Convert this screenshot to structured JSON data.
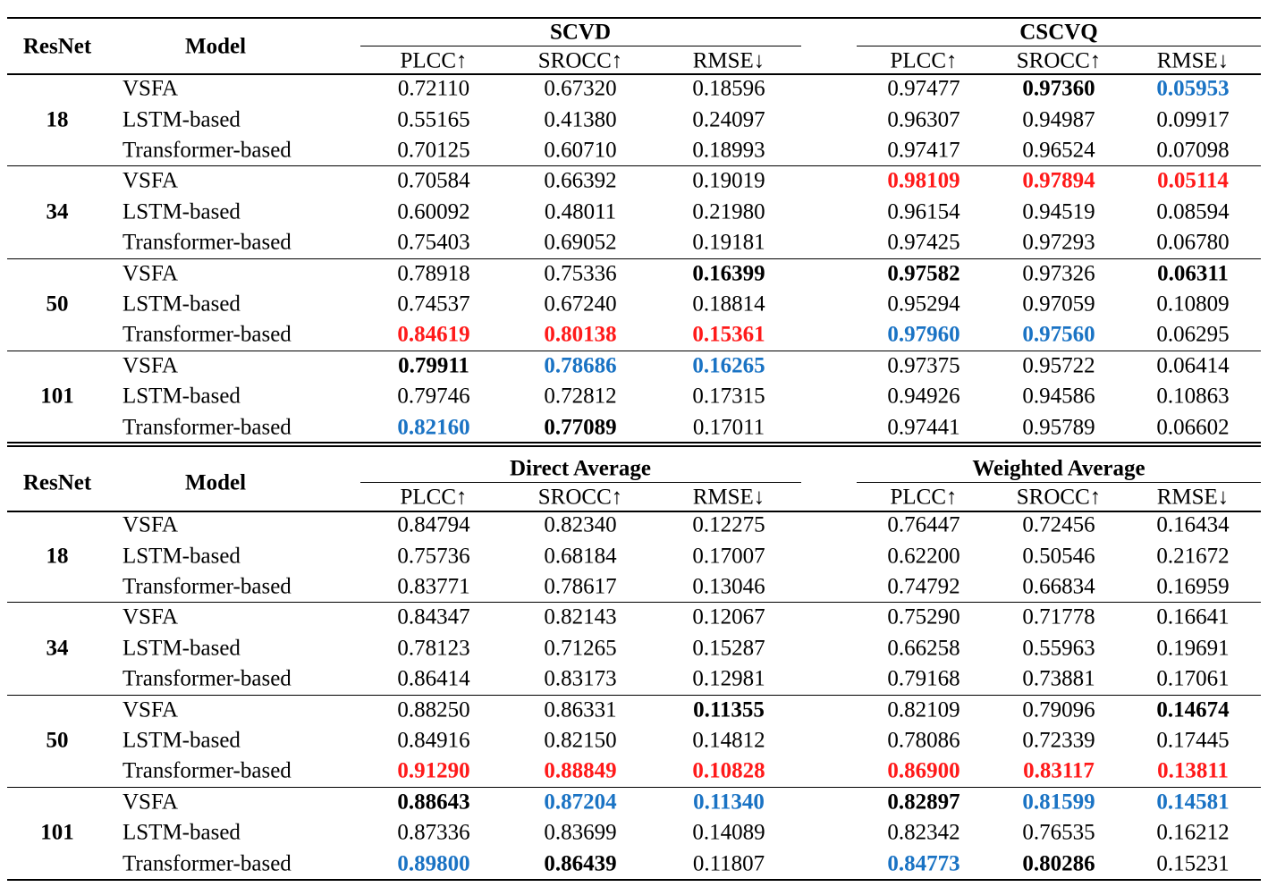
{
  "colors": {
    "red": "#ff1a1a",
    "blue": "#1a73c4",
    "text": "#000000"
  },
  "tables": [
    {
      "col_resnet": "ResNet",
      "col_model": "Model",
      "groups": [
        {
          "title": "SCVD",
          "metrics": [
            "PLCC↑",
            "SROCC↑",
            "RMSE↓"
          ]
        },
        {
          "title": "CSCVQ",
          "metrics": [
            "PLCC↑",
            "SROCC↑",
            "RMSE↓"
          ]
        }
      ],
      "blocks": [
        {
          "resnet": "18",
          "rows": [
            {
              "model": "VSFA",
              "values": [
                "0.72110",
                "0.67320",
                "0.18596",
                "0.97477",
                "0.97360",
                "0.05953"
              ],
              "styles": [
                "",
                "",
                "",
                "",
                "b",
                "blue"
              ]
            },
            {
              "model": "LSTM-based",
              "values": [
                "0.55165",
                "0.41380",
                "0.24097",
                "0.96307",
                "0.94987",
                "0.09917"
              ],
              "styles": [
                "",
                "",
                "",
                "",
                "",
                ""
              ]
            },
            {
              "model": "Transformer-based",
              "values": [
                "0.70125",
                "0.60710",
                "0.18993",
                "0.97417",
                "0.96524",
                "0.07098"
              ],
              "styles": [
                "",
                "",
                "",
                "",
                "",
                ""
              ]
            }
          ]
        },
        {
          "resnet": "34",
          "rows": [
            {
              "model": "VSFA",
              "values": [
                "0.70584",
                "0.66392",
                "0.19019",
                "0.98109",
                "0.97894",
                "0.05114"
              ],
              "styles": [
                "",
                "",
                "",
                "red",
                "red",
                "red"
              ]
            },
            {
              "model": "LSTM-based",
              "values": [
                "0.60092",
                "0.48011",
                "0.21980",
                "0.96154",
                "0.94519",
                "0.08594"
              ],
              "styles": [
                "",
                "",
                "",
                "",
                "",
                ""
              ]
            },
            {
              "model": "Transformer-based",
              "values": [
                "0.75403",
                "0.69052",
                "0.19181",
                "0.97425",
                "0.97293",
                "0.06780"
              ],
              "styles": [
                "",
                "",
                "",
                "",
                "",
                ""
              ]
            }
          ]
        },
        {
          "resnet": "50",
          "rows": [
            {
              "model": "VSFA",
              "values": [
                "0.78918",
                "0.75336",
                "0.16399",
                "0.97582",
                "0.97326",
                "0.06311"
              ],
              "styles": [
                "",
                "",
                "b",
                "b",
                "",
                "b"
              ]
            },
            {
              "model": "LSTM-based",
              "values": [
                "0.74537",
                "0.67240",
                "0.18814",
                "0.95294",
                "0.97059",
                "0.10809"
              ],
              "styles": [
                "",
                "",
                "",
                "",
                "",
                ""
              ]
            },
            {
              "model": "Transformer-based",
              "values": [
                "0.84619",
                "0.80138",
                "0.15361",
                "0.97960",
                "0.97560",
                "0.06295"
              ],
              "styles": [
                "red",
                "red",
                "red",
                "blue",
                "blue",
                ""
              ]
            }
          ]
        },
        {
          "resnet": "101",
          "rows": [
            {
              "model": "VSFA",
              "values": [
                "0.79911",
                "0.78686",
                "0.16265",
                "0.97375",
                "0.95722",
                "0.06414"
              ],
              "styles": [
                "b",
                "blue",
                "blue",
                "",
                "",
                ""
              ]
            },
            {
              "model": "LSTM-based",
              "values": [
                "0.79746",
                "0.72812",
                "0.17315",
                "0.94926",
                "0.94586",
                "0.10863"
              ],
              "styles": [
                "",
                "",
                "",
                "",
                "",
                ""
              ]
            },
            {
              "model": "Transformer-based",
              "values": [
                "0.82160",
                "0.77089",
                "0.17011",
                "0.97441",
                "0.95789",
                "0.06602"
              ],
              "styles": [
                "blue",
                "b",
                "",
                "",
                "",
                ""
              ]
            }
          ]
        }
      ]
    },
    {
      "col_resnet": "ResNet",
      "col_model": "Model",
      "groups": [
        {
          "title": "Direct Average",
          "metrics": [
            "PLCC↑",
            "SROCC↑",
            "RMSE↓"
          ]
        },
        {
          "title": "Weighted Average",
          "metrics": [
            "PLCC↑",
            "SROCC↑",
            "RMSE↓"
          ]
        }
      ],
      "blocks": [
        {
          "resnet": "18",
          "rows": [
            {
              "model": "VSFA",
              "values": [
                "0.84794",
                "0.82340",
                "0.12275",
                "0.76447",
                "0.72456",
                "0.16434"
              ],
              "styles": [
                "",
                "",
                "",
                "",
                "",
                ""
              ]
            },
            {
              "model": "LSTM-based",
              "values": [
                "0.75736",
                "0.68184",
                "0.17007",
                "0.62200",
                "0.50546",
                "0.21672"
              ],
              "styles": [
                "",
                "",
                "",
                "",
                "",
                ""
              ]
            },
            {
              "model": "Transformer-based",
              "values": [
                "0.83771",
                "0.78617",
                "0.13046",
                "0.74792",
                "0.66834",
                "0.16959"
              ],
              "styles": [
                "",
                "",
                "",
                "",
                "",
                ""
              ]
            }
          ]
        },
        {
          "resnet": "34",
          "rows": [
            {
              "model": "VSFA",
              "values": [
                "0.84347",
                "0.82143",
                "0.12067",
                "0.75290",
                "0.71778",
                "0.16641"
              ],
              "styles": [
                "",
                "",
                "",
                "",
                "",
                ""
              ]
            },
            {
              "model": "LSTM-based",
              "values": [
                "0.78123",
                "0.71265",
                "0.15287",
                "0.66258",
                "0.55963",
                "0.19691"
              ],
              "styles": [
                "",
                "",
                "",
                "",
                "",
                ""
              ]
            },
            {
              "model": "Transformer-based",
              "values": [
                "0.86414",
                "0.83173",
                "0.12981",
                "0.79168",
                "0.73881",
                "0.17061"
              ],
              "styles": [
                "",
                "",
                "",
                "",
                "",
                ""
              ]
            }
          ]
        },
        {
          "resnet": "50",
          "rows": [
            {
              "model": "VSFA",
              "values": [
                "0.88250",
                "0.86331",
                "0.11355",
                "0.82109",
                "0.79096",
                "0.14674"
              ],
              "styles": [
                "",
                "",
                "b",
                "",
                "",
                "b"
              ]
            },
            {
              "model": "LSTM-based",
              "values": [
                "0.84916",
                "0.82150",
                "0.14812",
                "0.78086",
                "0.72339",
                "0.17445"
              ],
              "styles": [
                "",
                "",
                "",
                "",
                "",
                ""
              ]
            },
            {
              "model": "Transformer-based",
              "values": [
                "0.91290",
                "0.88849",
                "0.10828",
                "0.86900",
                "0.83117",
                "0.13811"
              ],
              "styles": [
                "red",
                "red",
                "red",
                "red",
                "red",
                "red"
              ]
            }
          ]
        },
        {
          "resnet": "101",
          "rows": [
            {
              "model": "VSFA",
              "values": [
                "0.88643",
                "0.87204",
                "0.11340",
                "0.82897",
                "0.81599",
                "0.14581"
              ],
              "styles": [
                "b",
                "blue",
                "blue",
                "b",
                "blue",
                "blue"
              ]
            },
            {
              "model": "LSTM-based",
              "values": [
                "0.87336",
                "0.83699",
                "0.14089",
                "0.82342",
                "0.76535",
                "0.16212"
              ],
              "styles": [
                "",
                "",
                "",
                "",
                "",
                ""
              ]
            },
            {
              "model": "Transformer-based",
              "values": [
                "0.89800",
                "0.86439",
                "0.11807",
                "0.84773",
                "0.80286",
                "0.15231"
              ],
              "styles": [
                "blue",
                "b",
                "",
                "blue",
                "b",
                ""
              ]
            }
          ]
        }
      ]
    }
  ]
}
